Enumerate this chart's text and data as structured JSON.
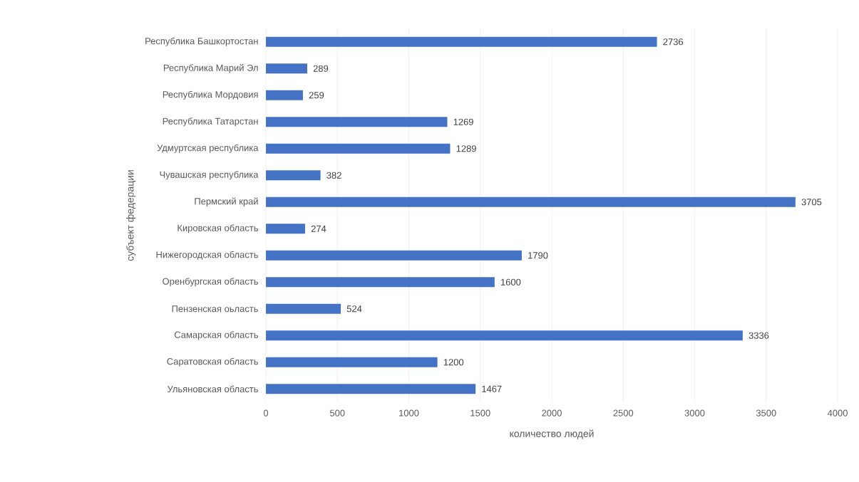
{
  "chart_data": {
    "type": "bar",
    "orientation": "horizontal",
    "xlabel": "количество людей",
    "ylabel": "субъект федерации",
    "categories": [
      "Республика Башкортостан",
      "Республика Марий Эл",
      "Республика Мордовия",
      "Республика Татарстан",
      "Удмуртская республика",
      "Чувашская республика",
      "Пермский край",
      "Кировская область",
      "Нижегородская область",
      "Оренбургская область",
      "Пензенская оьласть",
      "Самарская область",
      "Саратовская область",
      "Ульяновская область"
    ],
    "values": [
      2736,
      289,
      259,
      1269,
      1289,
      382,
      3705,
      274,
      1790,
      1600,
      524,
      3336,
      1200,
      1467
    ],
    "color": "#4472c4",
    "data_labels": true,
    "grid": "x",
    "xlim": [
      0,
      4000
    ],
    "xticks": [
      0,
      500,
      1000,
      1500,
      2000,
      2500,
      3000,
      3500,
      4000
    ]
  }
}
